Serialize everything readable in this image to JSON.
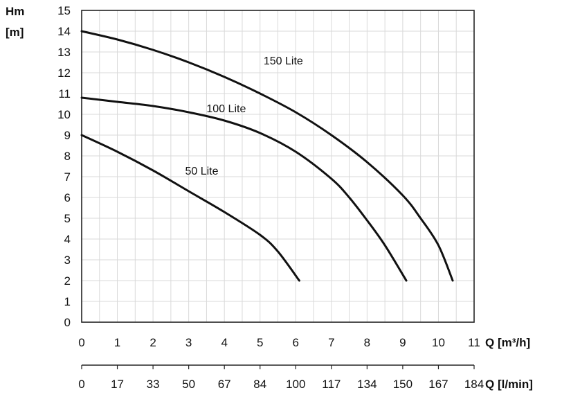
{
  "chart_data": {
    "type": "line",
    "xlabel": "Q [m³/h]",
    "ylabel_line1": "Hm",
    "ylabel_line2": "[m]",
    "x2label": "Q [l/min]",
    "xlim": [
      0,
      11
    ],
    "ylim": [
      0,
      15
    ],
    "x_ticks": [
      "0",
      "1",
      "2",
      "3",
      "4",
      "5",
      "6",
      "7",
      "8",
      "9",
      "10",
      "11"
    ],
    "y_ticks": [
      "0",
      "1",
      "2",
      "3",
      "4",
      "5",
      "6",
      "7",
      "8",
      "9",
      "10",
      "11",
      "12",
      "13",
      "14",
      "15"
    ],
    "x2_ticks": [
      "0",
      "17",
      "33",
      "50",
      "67",
      "84",
      "100",
      "117",
      "134",
      "150",
      "167",
      "184"
    ],
    "grid": true,
    "series": [
      {
        "name": "150 Lite",
        "x": [
          0,
          1,
          2,
          3,
          4,
          5,
          6,
          7,
          8,
          9,
          9.5,
          10,
          10.4
        ],
        "y": [
          14.0,
          13.6,
          13.1,
          12.5,
          11.8,
          11.0,
          10.1,
          9.0,
          7.7,
          6.1,
          5.0,
          3.7,
          2.0
        ]
      },
      {
        "name": "100 Lite",
        "x": [
          0,
          1,
          2,
          3,
          4,
          5,
          6,
          7,
          7.5,
          8,
          8.5,
          9.1
        ],
        "y": [
          10.8,
          10.6,
          10.4,
          10.1,
          9.7,
          9.1,
          8.2,
          6.9,
          6.0,
          4.9,
          3.7,
          2.0
        ]
      },
      {
        "name": "50 Lite",
        "x": [
          0,
          1,
          2,
          3,
          4,
          5,
          5.5,
          6.1
        ],
        "y": [
          9.0,
          8.2,
          7.3,
          6.3,
          5.3,
          4.2,
          3.4,
          2.0
        ]
      }
    ],
    "labels": [
      {
        "text": "150 Lite",
        "x": 5.1,
        "y": 12.6
      },
      {
        "text": "100 Lite",
        "x": 3.5,
        "y": 10.3
      },
      {
        "text": "50 Lite",
        "x": 2.9,
        "y": 7.3
      }
    ]
  }
}
